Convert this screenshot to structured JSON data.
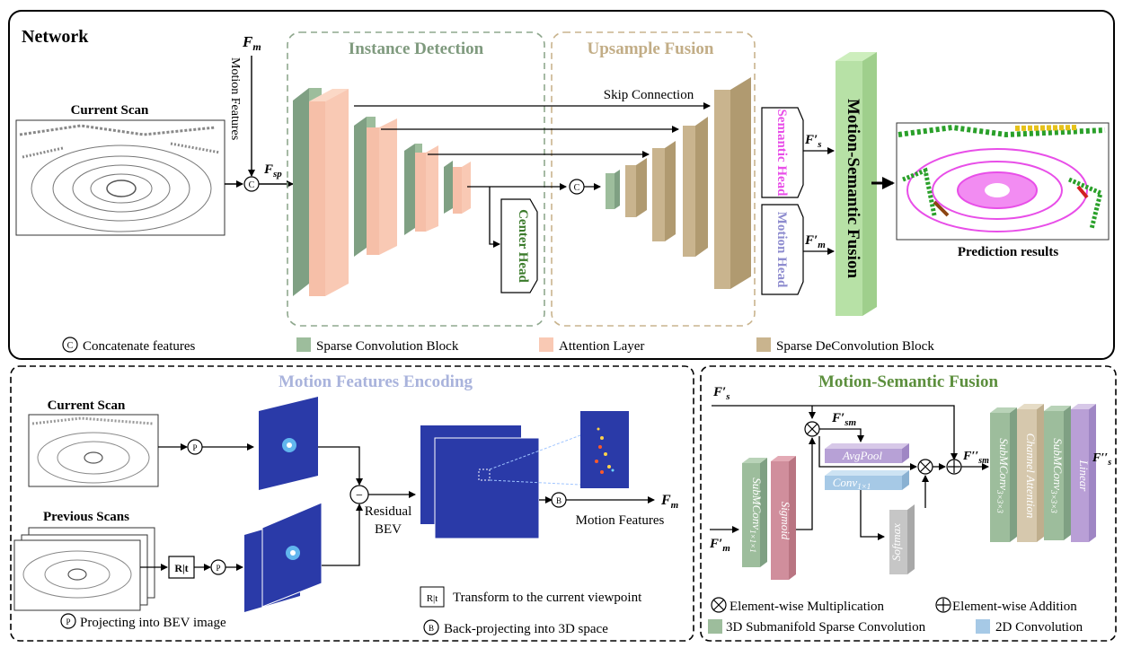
{
  "network": {
    "title": "Network",
    "current_scan": "Current Scan",
    "prediction": "Prediction results",
    "fm": "F",
    "fm_sub": "m",
    "fsp": "F",
    "fsp_sub": "sp",
    "motion_features_vertical": "Motion Features",
    "instance_detection": "Instance Detection",
    "upsample_fusion": "Upsample Fusion",
    "skip_connection": "Skip Connection",
    "center_head": "Center Head",
    "semantic_head": "Semantic Head",
    "motion_head": "Motion Head",
    "ms_fusion_vertical": "Motion-Semantic Fusion",
    "fs_prime": "F′",
    "fs_prime_sub": "s",
    "fm_prime": "F′",
    "fm_prime_sub": "m",
    "concat_symbol": "C",
    "legend": {
      "concat": "Concatenate features",
      "sparse_conv": "Sparse Convolution Block",
      "attention": "Attention Layer",
      "deconv": "Sparse DeConvolution Block"
    }
  },
  "mfe": {
    "title": "Motion Features Encoding",
    "current_scan": "Current Scan",
    "previous_scans": "Previous Scans",
    "p_symbol": "P",
    "b_symbol": "B",
    "minus_symbol": "−",
    "rt_label": "R|t",
    "residual": "Residual",
    "bev": "BEV",
    "motion_features": "Motion Features",
    "fm": "F",
    "fm_sub": "m",
    "legend_projecting": "Projecting into BEV image",
    "legend_transform": "Transform to the current viewpoint",
    "legend_backproject": "Back-projecting into 3D space"
  },
  "msf": {
    "title": "Motion-Semantic Fusion",
    "fs_prime": "F′",
    "fs_prime_sub": "s",
    "fsm_prime": "F′",
    "fsm_prime_sub": "sm",
    "fsm_dprime": "F′′",
    "fsm_dprime_sub": "sm",
    "fs_dprime": "F′′",
    "fs_dprime_sub": "s",
    "fm_prime": "F′",
    "fm_prime_sub": "m",
    "subm1": "SubMConv",
    "subm1_sub": "1×1×1",
    "sigmoid": "Sigmoid",
    "avgpool": "AvgPool",
    "conv": "Conv",
    "conv_sub": "1×1",
    "softmax": "Softmax",
    "subm3a": "SubMConv",
    "subm3a_sub": "3×3×3",
    "channel_attention": "Channel Attention",
    "subm3b": "SubMConv",
    "subm3b_sub": "3×3×3",
    "linear": "Linear",
    "legend_mult": "Element-wise Multiplication",
    "legend_add": "Element-wise Addition",
    "legend_subm": "3D Submanifold Sparse Convolution",
    "legend_2d": "2D Convolution"
  },
  "colors": {
    "green": "#9dbd9c",
    "green_dark": "#7fa083",
    "pink": "#f9c9b4",
    "tan": "#c9b48e",
    "tan_dark": "#b09a70",
    "fusion_green": "#b7e1a6",
    "instance_title": "#7f9a7e",
    "upsample_title": "#c2ad86",
    "mfe_title": "#a9b3dc",
    "msf_title": "#5c8f3d",
    "semantic_pink": "#e84ee8",
    "motion_blue": "#8e8ccf",
    "center_green": "#3a7a2a",
    "bev_blue": "#2a3aa8"
  }
}
